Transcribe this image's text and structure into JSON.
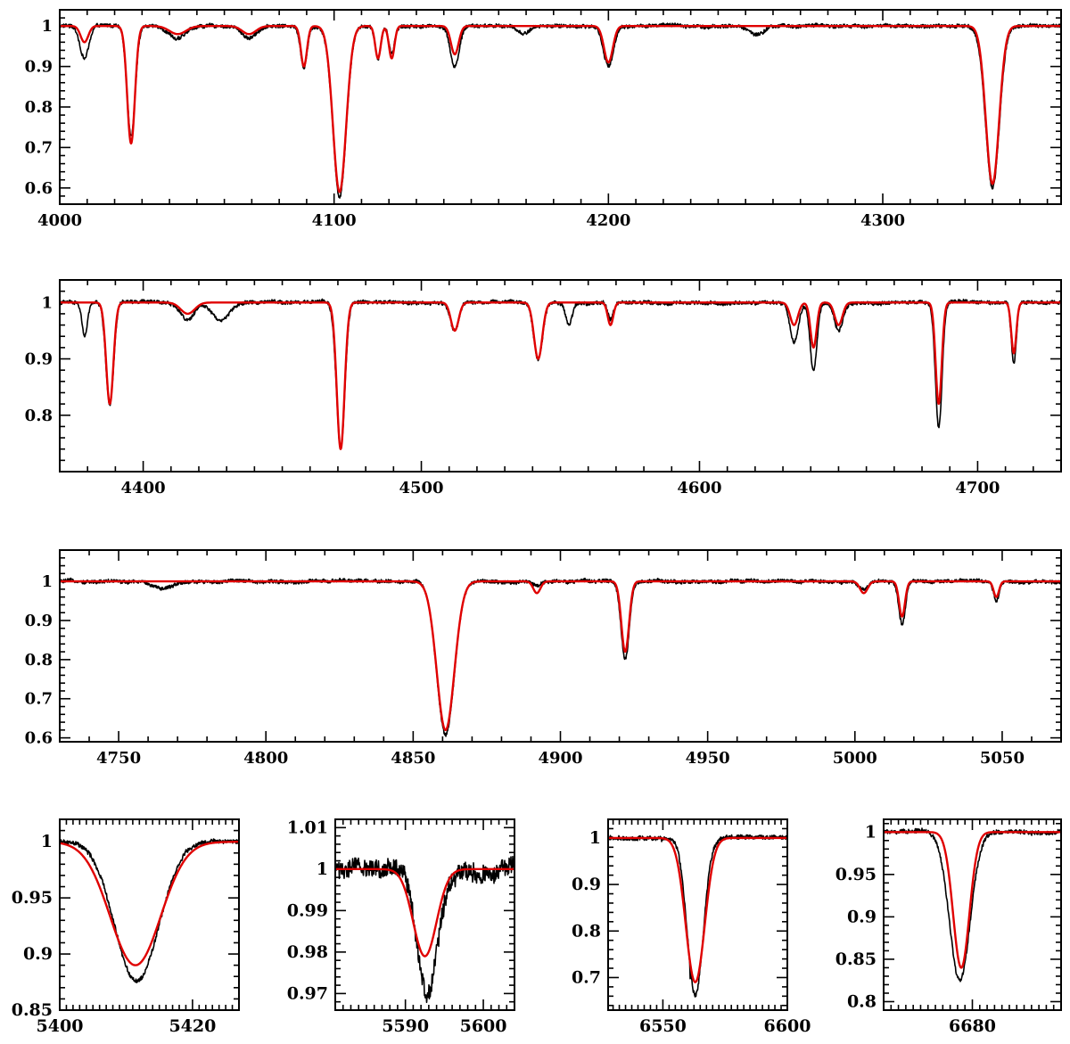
{
  "colors": {
    "observed": "#000000",
    "model": "#e00000",
    "frame": "#000000"
  },
  "chart_data": [
    {
      "type": "line",
      "panel": "top",
      "xlim": [
        4000,
        4365
      ],
      "ylim": [
        0.56,
        1.04
      ],
      "xticks": [
        4000,
        4100,
        4200,
        4300
      ],
      "xtick_labels": [
        "4000",
        "4100",
        "4200",
        "4300"
      ],
      "yticks": [
        0.6,
        0.7,
        0.8,
        0.9,
        1.0
      ],
      "ytick_labels": [
        "0.6",
        "0.7",
        "0.8",
        "0.9",
        "1"
      ],
      "xlabel": "",
      "ylabel": "",
      "title": "",
      "grid": false,
      "continuum": 1.0,
      "lines_obs": [
        [
          4009,
          0.08,
          1.6
        ],
        [
          4026,
          0.27,
          1.5
        ],
        [
          4043,
          0.03,
          3
        ],
        [
          4069,
          0.03,
          2.5
        ],
        [
          4089,
          0.1,
          1.2
        ],
        [
          4102,
          0.42,
          2.4
        ],
        [
          4116,
          0.08,
          1.0
        ],
        [
          4121,
          0.07,
          1.0
        ],
        [
          4144,
          0.1,
          1.6
        ],
        [
          4169,
          0.02,
          2
        ],
        [
          4200,
          0.1,
          1.8
        ],
        [
          4254,
          0.02,
          3
        ],
        [
          4340,
          0.4,
          2.5
        ]
      ],
      "lines_fit": [
        [
          4009,
          0.04,
          1.4
        ],
        [
          4026,
          0.29,
          1.4
        ],
        [
          4043,
          0.02,
          3
        ],
        [
          4069,
          0.02,
          2.5
        ],
        [
          4089,
          0.1,
          1.1
        ],
        [
          4102,
          0.41,
          2.4
        ],
        [
          4116,
          0.08,
          1.0
        ],
        [
          4121,
          0.08,
          1.0
        ],
        [
          4144,
          0.07,
          1.4
        ],
        [
          4200,
          0.09,
          1.6
        ],
        [
          4340,
          0.39,
          2.4
        ]
      ]
    },
    {
      "type": "line",
      "panel": "second",
      "xlim": [
        4370,
        4730
      ],
      "ylim": [
        0.7,
        1.04
      ],
      "xticks": [
        4400,
        4500,
        4600,
        4700
      ],
      "xtick_labels": [
        "4400",
        "4500",
        "4600",
        "4700"
      ],
      "yticks": [
        0.8,
        0.9,
        1.0
      ],
      "ytick_labels": [
        "0.8",
        "0.9",
        "1"
      ],
      "xlabel": "",
      "ylabel": "",
      "title": "",
      "grid": false,
      "continuum": 1.0,
      "lines_obs": [
        [
          4379,
          0.06,
          1.0
        ],
        [
          4388,
          0.18,
          1.4
        ],
        [
          4416,
          0.03,
          2.5
        ],
        [
          4428,
          0.03,
          3
        ],
        [
          4471,
          0.26,
          1.5
        ],
        [
          4512,
          0.05,
          1.5
        ],
        [
          4542,
          0.1,
          1.6
        ],
        [
          4553,
          0.04,
          1.2
        ],
        [
          4568,
          0.03,
          1.0
        ],
        [
          4634,
          0.07,
          1.5
        ],
        [
          4641,
          0.12,
          1.2
        ],
        [
          4650,
          0.05,
          1.5
        ],
        [
          4686,
          0.22,
          1.2
        ],
        [
          4713,
          0.11,
          0.9
        ]
      ],
      "lines_fit": [
        [
          4388,
          0.18,
          1.3
        ],
        [
          4416,
          0.02,
          2.5
        ],
        [
          4471,
          0.26,
          1.4
        ],
        [
          4512,
          0.05,
          1.4
        ],
        [
          4542,
          0.1,
          1.5
        ],
        [
          4568,
          0.04,
          1.0
        ],
        [
          4634,
          0.04,
          1.4
        ],
        [
          4641,
          0.08,
          1.1
        ],
        [
          4650,
          0.04,
          1.4
        ],
        [
          4686,
          0.18,
          1.1
        ],
        [
          4713,
          0.09,
          0.9
        ]
      ]
    },
    {
      "type": "line",
      "panel": "third",
      "xlim": [
        4730,
        5070
      ],
      "ylim": [
        0.59,
        1.08
      ],
      "xticks": [
        4750,
        4800,
        4850,
        4900,
        4950,
        5000,
        5050
      ],
      "xtick_labels": [
        "4750",
        "4800",
        "4850",
        "4900",
        "4950",
        "5000",
        "5050"
      ],
      "yticks": [
        0.6,
        0.7,
        0.8,
        0.9,
        1.0
      ],
      "ytick_labels": [
        "0.6",
        "0.7",
        "0.8",
        "0.9",
        "1"
      ],
      "xlabel": "",
      "ylabel": "",
      "title": "",
      "grid": false,
      "continuum": 1.0,
      "lines_obs": [
        [
          4765,
          0.02,
          3
        ],
        [
          4861,
          0.39,
          3.0
        ],
        [
          4892,
          0.01,
          1.5
        ],
        [
          4922,
          0.2,
          1.4
        ],
        [
          5003,
          0.02,
          1.5
        ],
        [
          5016,
          0.11,
          1.1
        ],
        [
          5048,
          0.05,
          1.0
        ]
      ],
      "lines_fit": [
        [
          4861,
          0.38,
          3.0
        ],
        [
          4892,
          0.03,
          1.2
        ],
        [
          4922,
          0.18,
          1.3
        ],
        [
          5003,
          0.03,
          1.3
        ],
        [
          5016,
          0.09,
          1.0
        ],
        [
          5048,
          0.04,
          0.9
        ]
      ]
    },
    {
      "type": "line",
      "panel": "bottom-1",
      "xlim": [
        5400,
        5427
      ],
      "ylim": [
        0.85,
        1.02
      ],
      "xticks": [
        5400,
        5420
      ],
      "xtick_labels": [
        "5400",
        "5420"
      ],
      "yticks": [
        0.85,
        0.9,
        0.95,
        1.0
      ],
      "ytick_labels": [
        "0.85",
        "0.9",
        "0.95",
        "1"
      ],
      "xlabel": "",
      "ylabel": "",
      "title": "",
      "grid": false,
      "continuum": 1.0,
      "lines_obs": [
        [
          5411.6,
          0.125,
          3.3
        ]
      ],
      "lines_fit": [
        [
          5411.4,
          0.11,
          3.8
        ]
      ]
    },
    {
      "type": "line",
      "panel": "bottom-2",
      "xlim": [
        5581,
        5604
      ],
      "ylim": [
        0.966,
        1.012
      ],
      "xticks": [
        5590,
        5600
      ],
      "xtick_labels": [
        "5590",
        "5600"
      ],
      "yticks": [
        0.97,
        0.98,
        0.99,
        1.0,
        1.01
      ],
      "ytick_labels": [
        "0.97",
        "0.98",
        "0.99",
        "1",
        "1.01"
      ],
      "xlabel": "",
      "ylabel": "",
      "title": "",
      "grid": false,
      "continuum": 1.0,
      "lines_obs": [
        [
          5592.8,
          0.029,
          1.3
        ]
      ],
      "lines_fit": [
        [
          5592.5,
          0.021,
          1.5
        ]
      ]
    },
    {
      "type": "line",
      "panel": "bottom-3",
      "xlim": [
        6528,
        6600
      ],
      "ylim": [
        0.63,
        1.04
      ],
      "xticks": [
        6550,
        6600
      ],
      "xtick_labels": [
        "6550",
        "6600"
      ],
      "yticks": [
        0.7,
        0.8,
        0.9,
        1.0
      ],
      "ytick_labels": [
        "0.7",
        "0.8",
        "0.9",
        "1"
      ],
      "xlabel": "",
      "ylabel": "",
      "title": "",
      "grid": false,
      "continuum": 1.0,
      "lines_obs": [
        [
          6563,
          0.34,
          3.2
        ]
      ],
      "lines_fit": [
        [
          6563,
          0.31,
          3.8
        ]
      ]
    },
    {
      "type": "line",
      "panel": "bottom-4",
      "xlim": [
        6668,
        6692
      ],
      "ylim": [
        0.79,
        1.015
      ],
      "xticks": [
        6680
      ],
      "xtick_labels": [
        "6680"
      ],
      "yticks": [
        0.8,
        0.85,
        0.9,
        0.95,
        1.0
      ],
      "ytick_labels": [
        "0.8",
        "0.85",
        "0.9",
        "0.95",
        "1"
      ],
      "xlabel": "",
      "ylabel": "",
      "title": "",
      "grid": false,
      "continuum": 1.0,
      "lines_obs": [
        [
          6678.3,
          0.175,
          1.4
        ]
      ],
      "lines_fit": [
        [
          6678.5,
          0.16,
          1.1
        ]
      ]
    }
  ]
}
